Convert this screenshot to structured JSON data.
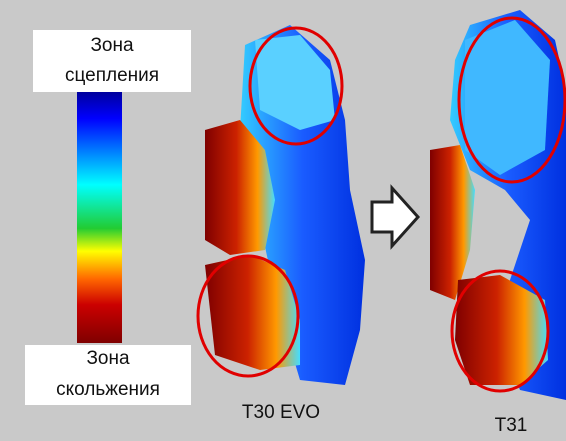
{
  "color_scale": {
    "top_label": [
      "Зона",
      "сцепления"
    ],
    "bottom_label": [
      "Зона",
      "скольжения"
    ]
  },
  "patches": [
    {
      "label": "T30 EVO"
    },
    {
      "label": "T31"
    }
  ]
}
